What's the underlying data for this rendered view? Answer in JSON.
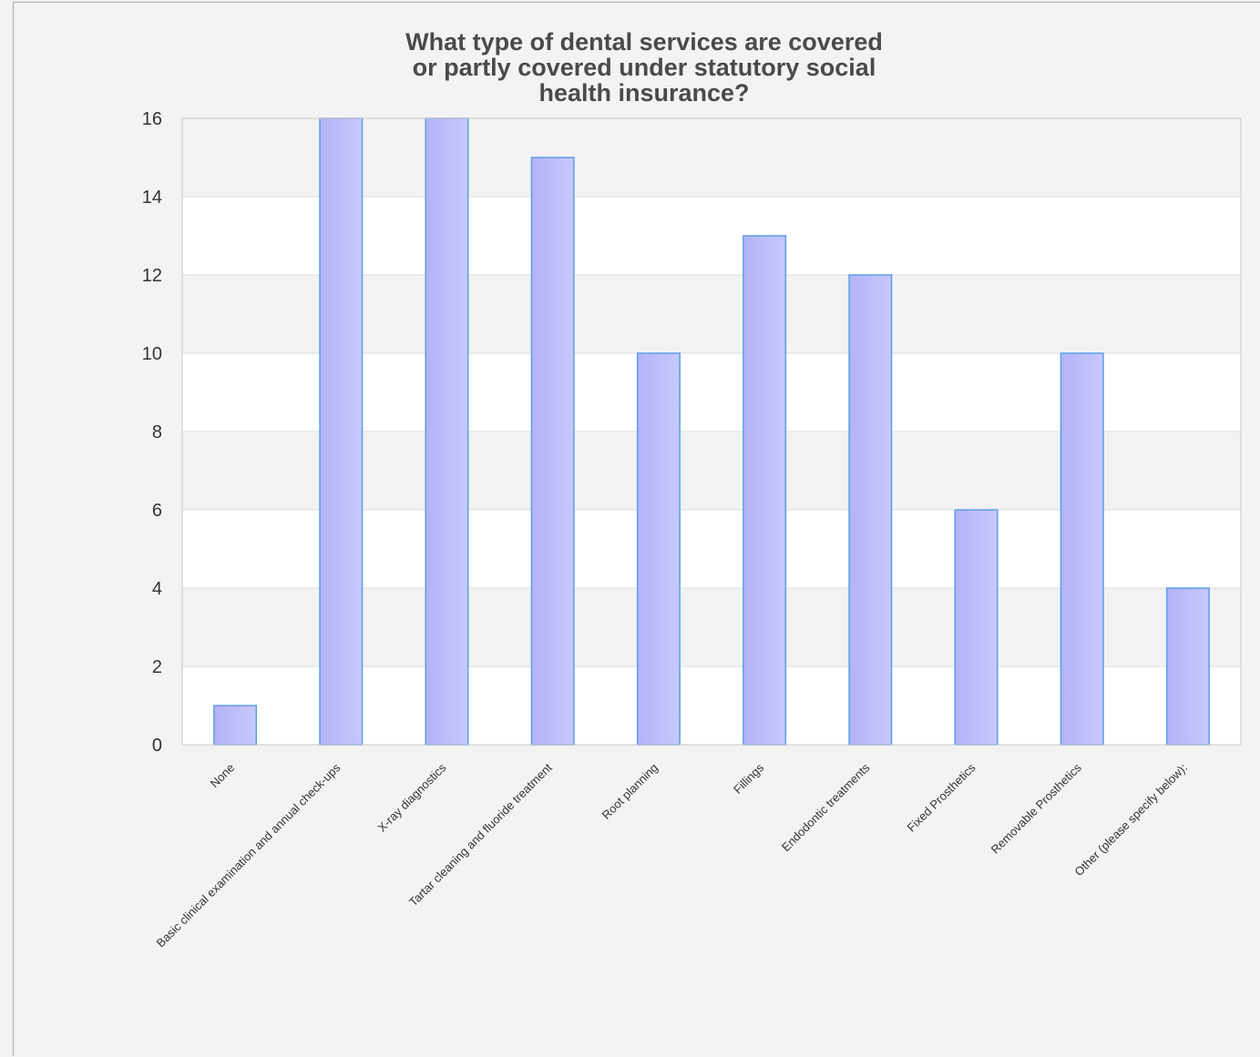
{
  "chart_data": {
    "type": "bar",
    "title_lines": [
      "What type of dental services are covered",
      "or partly covered under statutory social",
      "health insurance?"
    ],
    "categories": [
      "None",
      "Basic clinical examination and annual check-ups",
      "X-ray diagnostics",
      "Tartar cleaning and fluoride treatment",
      "Root planning",
      "Fillings",
      "Endodontic treatments",
      "Fixed Prosthetics",
      "Removable Prosthetics",
      "Other (please specify below):"
    ],
    "values": [
      1,
      16,
      16,
      15,
      10,
      13,
      12,
      6,
      10,
      4
    ],
    "ylim": [
      0,
      16
    ],
    "yticks": [
      "0",
      "2",
      "4",
      "6",
      "8",
      "10",
      "12",
      "14",
      "16"
    ],
    "grid": true,
    "colors": {
      "bar_fill_start": "#b3b3f7",
      "bar_fill_end": "#c8c8ff",
      "bar_stroke": "#5a9ee6",
      "band_light": "#ffffff",
      "band_dark": "#f3f2f3",
      "gridline": "#dcdcdc",
      "plot_border": "#c8c8c8"
    }
  }
}
